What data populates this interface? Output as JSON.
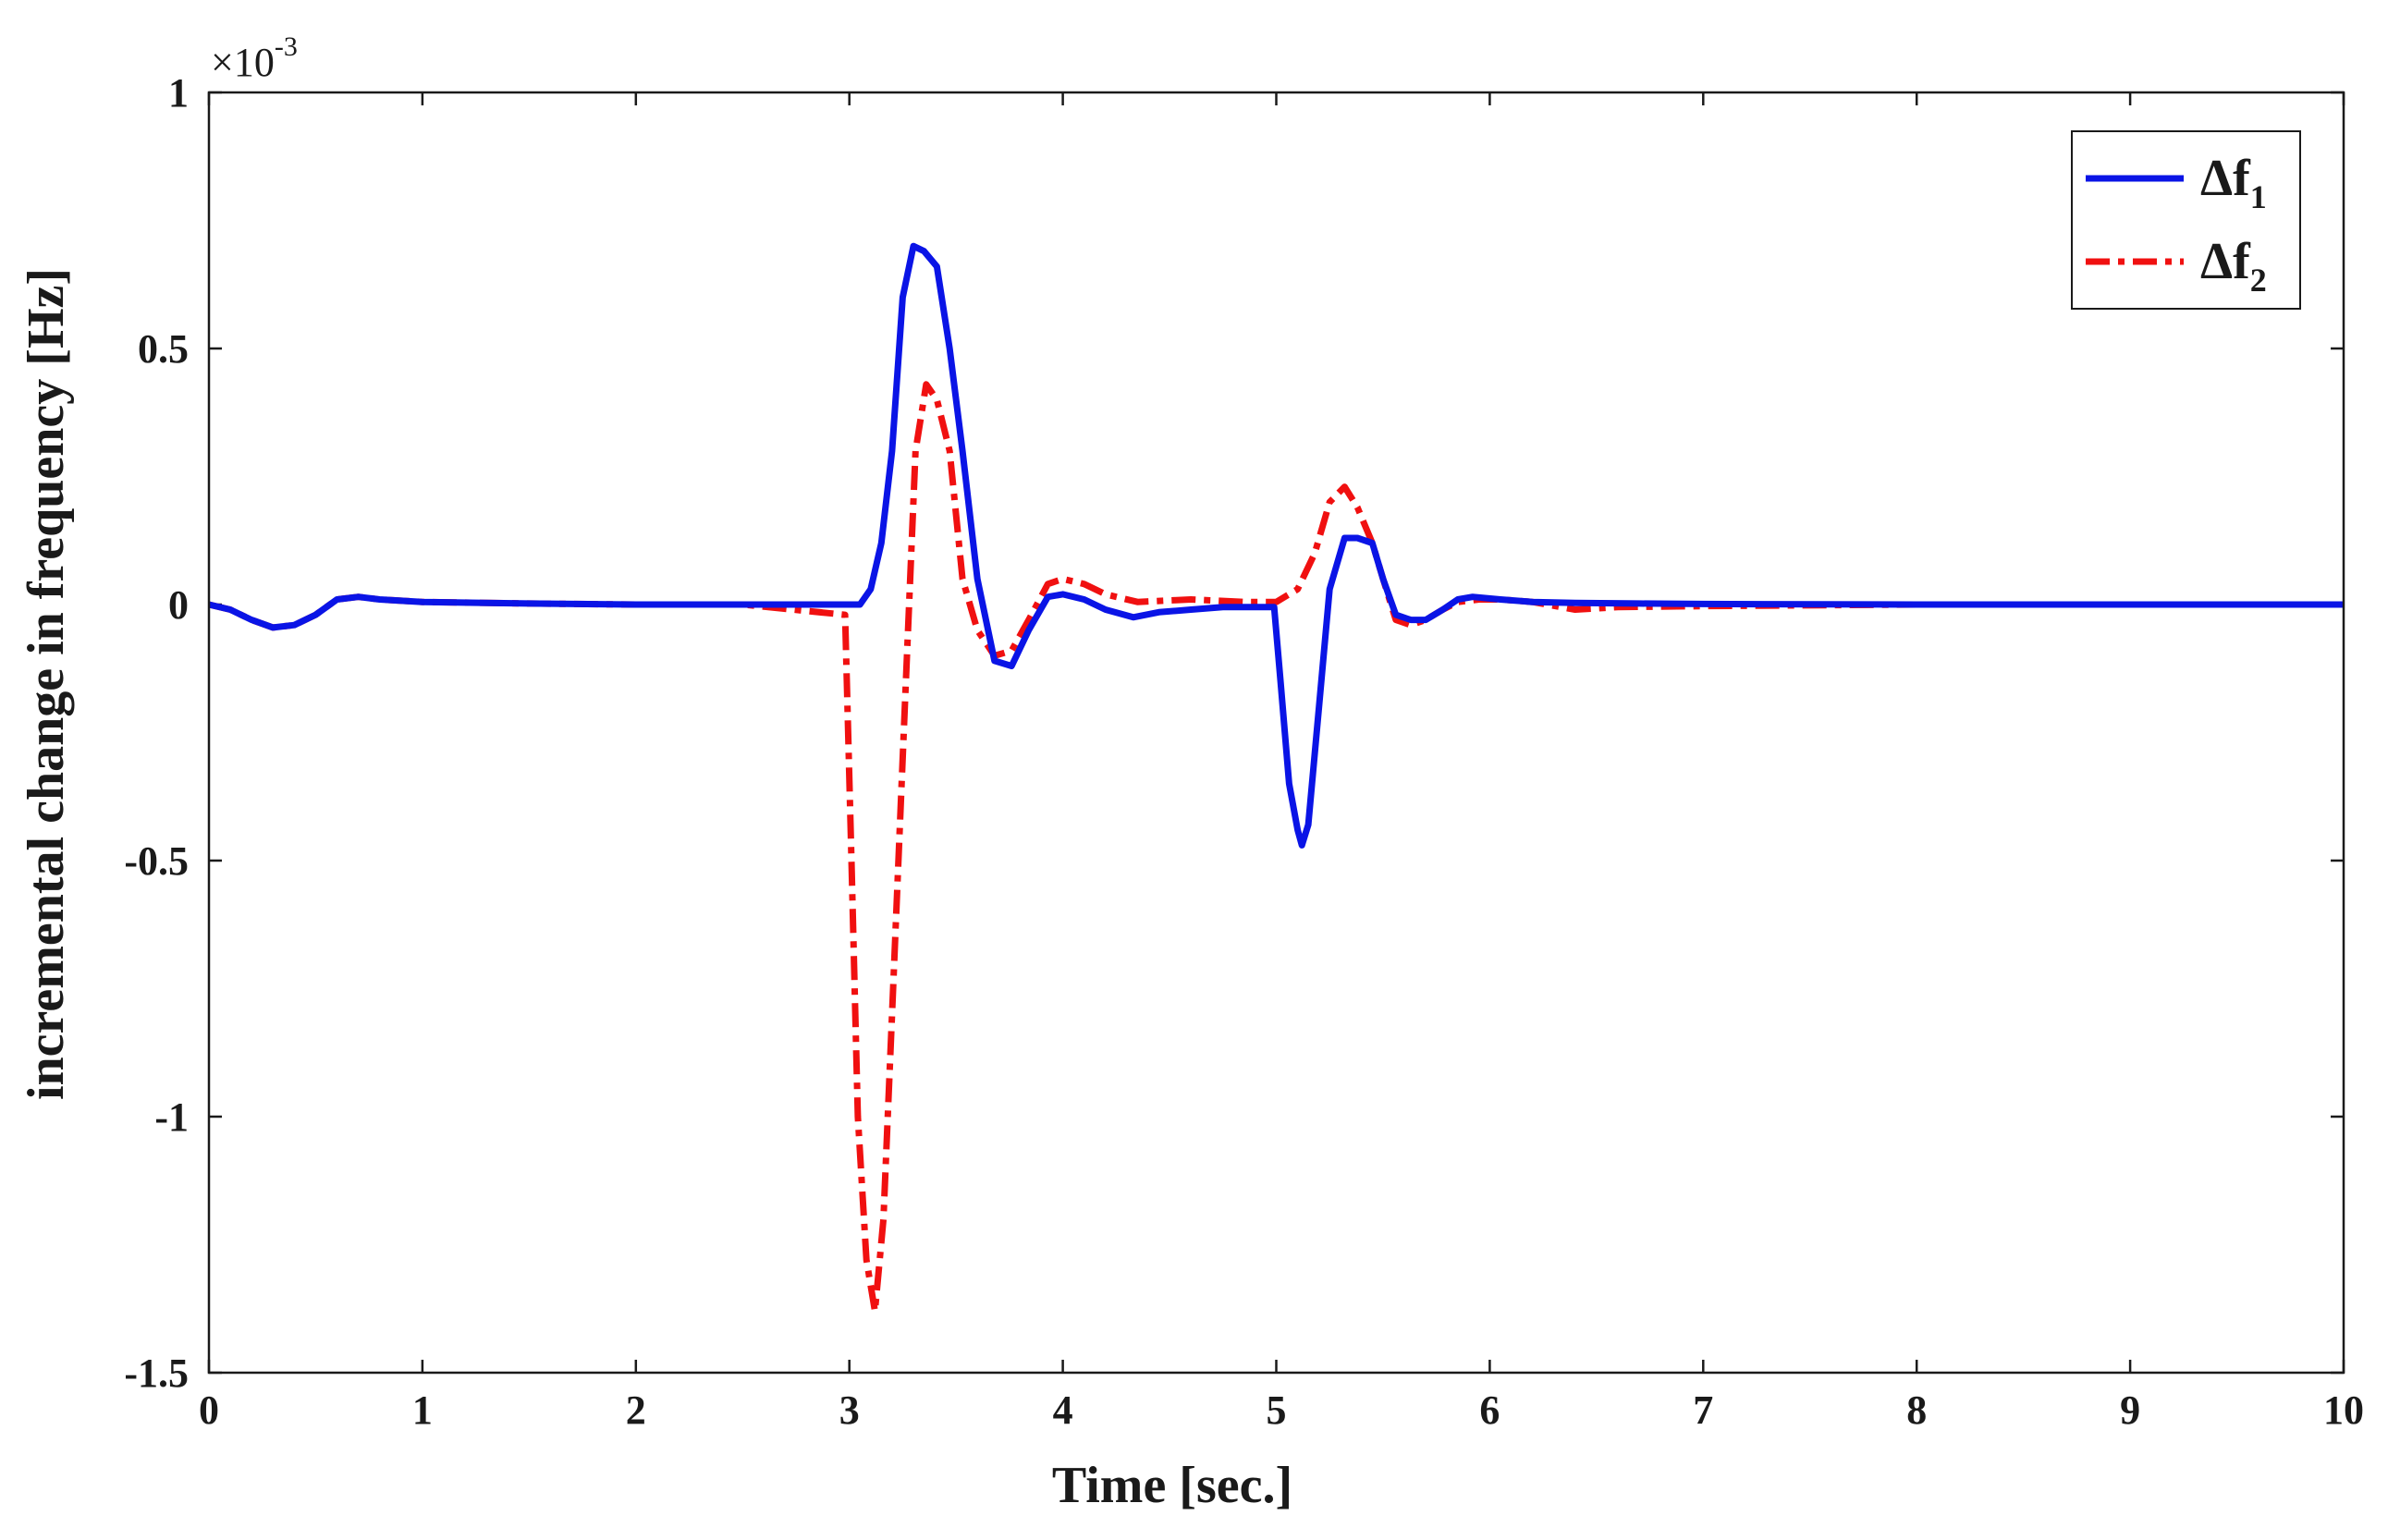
{
  "chart_data": {
    "type": "line",
    "title": "",
    "xlabel": "Time [sec.]",
    "ylabel": "incremental change in frequency [Hz]",
    "y_multiplier": "×10",
    "y_multiplier_exp": "-3",
    "xlim": [
      0,
      10
    ],
    "ylim": [
      -1.5,
      1
    ],
    "x_ticks": [
      "0",
      "1",
      "2",
      "3",
      "4",
      "5",
      "6",
      "7",
      "8",
      "9",
      "10"
    ],
    "y_ticks": [
      "1",
      "0.5",
      "0",
      "-0.5",
      "-1",
      "-1.5"
    ],
    "grid": false,
    "legend_position": "top-right",
    "colors": {
      "series1": "#0a14e6",
      "series2": "#f01010",
      "axis": "#1a1a1a"
    },
    "series": [
      {
        "name": "Δf",
        "name_sub": "1",
        "style": "solid",
        "x": [
          0,
          0.1,
          0.2,
          0.3,
          0.4,
          0.5,
          0.6,
          0.7,
          0.8,
          1.0,
          1.5,
          2.0,
          2.5,
          2.98,
          3.05,
          3.1,
          3.15,
          3.2,
          3.25,
          3.3,
          3.35,
          3.41,
          3.47,
          3.53,
          3.6,
          3.68,
          3.76,
          3.84,
          3.93,
          4.0,
          4.1,
          4.2,
          4.33,
          4.45,
          4.6,
          4.75,
          4.9,
          4.99,
          5.02,
          5.06,
          5.1,
          5.12,
          5.15,
          5.2,
          5.25,
          5.32,
          5.38,
          5.45,
          5.5,
          5.56,
          5.63,
          5.7,
          5.78,
          5.85,
          5.92,
          6.05,
          6.2,
          6.4,
          6.7,
          7.0,
          8.0,
          9.0,
          10.0
        ],
        "y": [
          0,
          -0.01,
          -0.03,
          -0.045,
          -0.04,
          -0.02,
          0.01,
          0.015,
          0.01,
          0.005,
          0.002,
          0,
          0,
          0,
          0,
          0.03,
          0.12,
          0.3,
          0.6,
          0.7,
          0.69,
          0.66,
          0.5,
          0.3,
          0.05,
          -0.11,
          -0.12,
          -0.05,
          0.015,
          0.02,
          0.01,
          -0.01,
          -0.025,
          -0.015,
          -0.01,
          -0.005,
          -0.005,
          -0.005,
          -0.15,
          -0.35,
          -0.44,
          -0.47,
          -0.43,
          -0.2,
          0.03,
          0.13,
          0.13,
          0.12,
          0.05,
          -0.02,
          -0.03,
          -0.03,
          -0.01,
          0.01,
          0.015,
          0.01,
          0.005,
          0.003,
          0.002,
          0.001,
          0,
          0,
          0
        ]
      },
      {
        "name": "Δf",
        "name_sub": "2",
        "style": "dash-dot",
        "x": [
          0,
          0.1,
          0.2,
          0.3,
          0.4,
          0.5,
          0.6,
          0.7,
          0.8,
          1.0,
          1.5,
          2.0,
          2.5,
          2.98,
          3.01,
          3.04,
          3.08,
          3.12,
          3.16,
          3.21,
          3.26,
          3.31,
          3.36,
          3.41,
          3.47,
          3.53,
          3.6,
          3.68,
          3.76,
          3.84,
          3.93,
          4.0,
          4.1,
          4.2,
          4.35,
          4.6,
          4.85,
          5.0,
          5.1,
          5.18,
          5.25,
          5.32,
          5.38,
          5.45,
          5.5,
          5.56,
          5.63,
          5.7,
          5.78,
          5.85,
          5.95,
          6.05,
          6.2,
          6.4,
          6.6,
          7.0,
          8.0,
          9.0,
          10.0
        ],
        "y": [
          0,
          -0.01,
          -0.03,
          -0.045,
          -0.04,
          -0.02,
          0.01,
          0.015,
          0.01,
          0.005,
          0.002,
          0,
          0,
          -0.02,
          -0.5,
          -1.0,
          -1.28,
          -1.38,
          -1.2,
          -0.7,
          -0.2,
          0.3,
          0.43,
          0.4,
          0.3,
          0.05,
          -0.05,
          -0.1,
          -0.09,
          -0.03,
          0.04,
          0.05,
          0.04,
          0.02,
          0.005,
          0.01,
          0.005,
          0.005,
          0.03,
          0.1,
          0.2,
          0.23,
          0.19,
          0.12,
          0.05,
          -0.03,
          -0.04,
          -0.03,
          -0.01,
          0.005,
          0.01,
          0.01,
          0.005,
          -0.01,
          -0.005,
          -0.003,
          0,
          0,
          0
        ]
      }
    ]
  }
}
